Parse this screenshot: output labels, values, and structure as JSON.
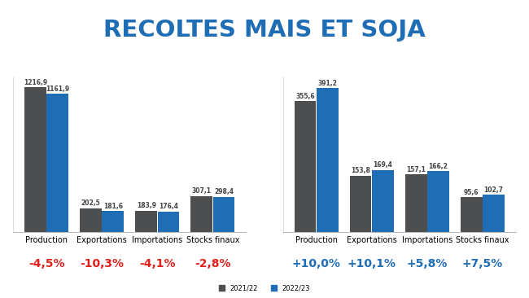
{
  "title": "RECOLTES MAIS ET SOJA",
  "chart_data": [
    {
      "type": "bar",
      "categories": [
        "Production",
        "Exportations",
        "Importations",
        "Stocks finaux"
      ],
      "series": [
        {
          "name": "2021/22",
          "color": "#4d4e50",
          "values": [
            1216.9,
            202.5,
            183.9,
            307.1
          ],
          "value_labels": [
            "1216,9",
            "202,5",
            "183,9",
            "307,1"
          ]
        },
        {
          "name": "2022/23",
          "color": "#1f6db5",
          "values": [
            1161.9,
            181.6,
            176.4,
            298.4
          ],
          "value_labels": [
            "1161,9",
            "181,6",
            "176,4",
            "298,4"
          ]
        }
      ],
      "changes": [
        "-4,5%",
        "-10,3%",
        "-4,1%",
        "-2,8%"
      ],
      "ylim": [
        0,
        1300
      ],
      "yticks": [],
      "tick_labels": "x",
      "data_labels": true,
      "legend": "lower center"
    },
    {
      "type": "bar",
      "categories": [
        "Production",
        "Exportations",
        "Importations",
        "Stocks finaux"
      ],
      "series": [
        {
          "name": "2021/22",
          "color": "#4d4e50",
          "values": [
            355.6,
            153.8,
            157.1,
            95.6
          ],
          "value_labels": [
            "355,6",
            "153,8",
            "157,1",
            "95,6"
          ]
        },
        {
          "name": "2022/23",
          "color": "#1f6db5",
          "values": [
            391.2,
            169.4,
            166.2,
            102.7
          ],
          "value_labels": [
            "391,2",
            "169,4",
            "166,2",
            "102,7"
          ]
        }
      ],
      "changes": [
        "+10,0%",
        "+10,1%",
        "+5,8%",
        "+7,5%"
      ],
      "ylim": [
        0,
        420
      ],
      "yticks": [],
      "tick_labels": "x",
      "data_labels": true
    }
  ]
}
